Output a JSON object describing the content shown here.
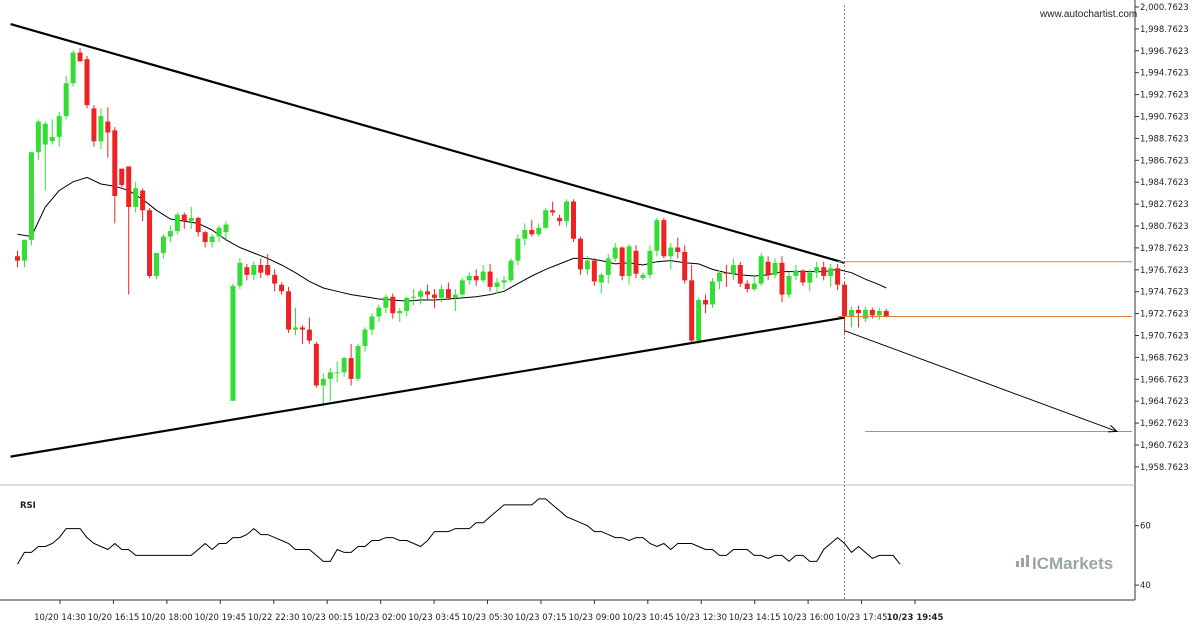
{
  "watermark": "www.autochartist.com",
  "brand": {
    "text": "ICMarkets"
  },
  "colors": {
    "up": "#33dd33",
    "down": "#ee2222",
    "ma": "#000000",
    "level": "#e0803f",
    "trend": "#000000",
    "vline": "#666666"
  },
  "chart_data": {
    "type": "candlestick",
    "title": "",
    "ylim": [
      1957.7623,
      2000.7623
    ],
    "y_ticks": [
      "2,000.7623",
      "1,998.7623",
      "1,996.7623",
      "1,994.7623",
      "1,992.7623",
      "1,990.7623",
      "1,988.7623",
      "1,986.7623",
      "1,984.7623",
      "1,982.7623",
      "1,980.7623",
      "1,978.7623",
      "1,976.7623",
      "1,974.7623",
      "1,972.7623",
      "1,970.7623",
      "1,968.7623",
      "1,966.7623",
      "1,964.7623",
      "1,962.7623",
      "1,960.7623",
      "1,958.7623"
    ],
    "x_ticks": [
      "10/20 14:30",
      "10/20 16:15",
      "10/20 18:00",
      "10/20 19:45",
      "10/22 22:30",
      "10/23 00:15",
      "10/23 02:00",
      "10/23 03:45",
      "10/23 05:30",
      "10/23 07:15",
      "10/23 09:00",
      "10/23 10:45",
      "10/23 12:30",
      "10/23 14:15",
      "10/23 16:00",
      "10/23 17:45",
      "10/23 19:45"
    ],
    "candles": [
      [
        1978.0,
        1978.5,
        1977.0,
        1977.6
      ],
      [
        1977.6,
        1979.5,
        1977.0,
        1979.5
      ],
      [
        1979.5,
        1987.5,
        1979.0,
        1987.5
      ],
      [
        1987.5,
        1990.5,
        1986.8,
        1990.3
      ],
      [
        1988.2,
        1990.3,
        1984.0,
        1990.1
      ],
      [
        1988.5,
        1990.5,
        1988.2,
        1988.9
      ],
      [
        1988.9,
        1991.2,
        1988.0,
        1990.8
      ],
      [
        1990.8,
        1994.5,
        1990.5,
        1993.8
      ],
      [
        1993.8,
        1996.8,
        1993.5,
        1996.6
      ],
      [
        1996.6,
        1997.0,
        1995.8,
        1995.8
      ],
      [
        1996.0,
        1996.3,
        1991.5,
        1991.8
      ],
      [
        1991.5,
        1991.8,
        1988.0,
        1988.5
      ],
      [
        1988.5,
        1991.5,
        1987.8,
        1990.8
      ],
      [
        1990.3,
        1991.6,
        1987.0,
        1989.3
      ],
      [
        1989.5,
        1989.8,
        1981.0,
        1983.5
      ],
      [
        1986.0,
        1986.0,
        1984.3,
        1984.5
      ],
      [
        1986.2,
        1986.2,
        1974.5,
        1982.5
      ],
      [
        1982.5,
        1984.8,
        1982.0,
        1984.2
      ],
      [
        1984.0,
        1984.2,
        1981.2,
        1982.2
      ],
      [
        1982.2,
        1982.4,
        1976.0,
        1976.2
      ],
      [
        1976.2,
        1978.3,
        1975.9,
        1978.3
      ],
      [
        1978.3,
        1980.0,
        1977.8,
        1979.8
      ],
      [
        1979.8,
        1980.8,
        1979.3,
        1980.3
      ],
      [
        1980.3,
        1982.0,
        1980.0,
        1981.8
      ],
      [
        1981.8,
        1982.0,
        1980.5,
        1981.2
      ],
      [
        1981.2,
        1982.5,
        1980.5,
        1981.5
      ],
      [
        1981.5,
        1981.6,
        1979.8,
        1980.2
      ],
      [
        1980.2,
        1980.3,
        1978.8,
        1979.3
      ],
      [
        1979.3,
        1980.0,
        1978.8,
        1979.8
      ],
      [
        1979.8,
        1980.8,
        1979.3,
        1980.6
      ],
      [
        1980.2,
        1981.2,
        1979.5,
        1980.9
      ],
      [
        1964.8,
        1975.5,
        1964.8,
        1975.3
      ],
      [
        1975.3,
        1977.8,
        1975.0,
        1977.4
      ],
      [
        1977.0,
        1977.3,
        1975.8,
        1976.3
      ],
      [
        1976.3,
        1977.5,
        1975.8,
        1977.2
      ],
      [
        1977.2,
        1977.8,
        1976.0,
        1976.5
      ],
      [
        1977.2,
        1978.2,
        1976.2,
        1976.3
      ],
      [
        1976.3,
        1976.8,
        1974.8,
        1975.5
      ],
      [
        1975.4,
        1975.6,
        1974.5,
        1974.8
      ],
      [
        1974.8,
        1975.2,
        1971.0,
        1971.3
      ],
      [
        1971.3,
        1973.3,
        1970.8,
        1971.5
      ],
      [
        1971.5,
        1971.7,
        1970.0,
        1971.3
      ],
      [
        1971.3,
        1972.4,
        1970.0,
        1970.3
      ],
      [
        1970.0,
        1970.2,
        1966.0,
        1966.2
      ],
      [
        1966.2,
        1967.3,
        1964.3,
        1966.8
      ],
      [
        1966.8,
        1967.8,
        1964.8,
        1967.4
      ],
      [
        1967.4,
        1968.4,
        1966.5,
        1967.4
      ],
      [
        1967.4,
        1968.8,
        1967.0,
        1968.7
      ],
      [
        1968.7,
        1970.0,
        1966.2,
        1966.8
      ],
      [
        1966.8,
        1970.0,
        1966.6,
        1969.8
      ],
      [
        1969.8,
        1971.5,
        1969.3,
        1971.3
      ],
      [
        1971.3,
        1972.8,
        1970.8,
        1972.5
      ],
      [
        1972.5,
        1973.6,
        1972.0,
        1973.3
      ],
      [
        1973.3,
        1974.5,
        1972.8,
        1974.3
      ],
      [
        1974.3,
        1974.6,
        1972.3,
        1972.8
      ],
      [
        1972.8,
        1973.3,
        1972.0,
        1973.0
      ],
      [
        1973.0,
        1974.3,
        1972.5,
        1974.2
      ],
      [
        1974.2,
        1975.0,
        1973.5,
        1974.3
      ],
      [
        1974.3,
        1975.0,
        1973.6,
        1974.8
      ],
      [
        1974.8,
        1975.4,
        1974.0,
        1974.5
      ],
      [
        1974.5,
        1975.0,
        1973.3,
        1974.2
      ],
      [
        1974.2,
        1975.4,
        1973.8,
        1975.0
      ],
      [
        1975.0,
        1975.6,
        1974.0,
        1974.2
      ],
      [
        1974.2,
        1975.0,
        1973.0,
        1974.5
      ],
      [
        1974.5,
        1976.0,
        1974.2,
        1975.8
      ],
      [
        1975.8,
        1976.5,
        1975.4,
        1976.2
      ],
      [
        1976.2,
        1976.8,
        1975.3,
        1975.8
      ],
      [
        1975.8,
        1977.2,
        1975.6,
        1976.6
      ],
      [
        1976.6,
        1977.3,
        1974.8,
        1975.2
      ],
      [
        1975.2,
        1976.0,
        1974.6,
        1975.6
      ],
      [
        1975.6,
        1976.2,
        1975.0,
        1975.8
      ],
      [
        1975.8,
        1977.8,
        1975.6,
        1977.6
      ],
      [
        1977.6,
        1980.0,
        1977.2,
        1979.6
      ],
      [
        1979.6,
        1981.0,
        1979.0,
        1980.4
      ],
      [
        1980.4,
        1981.3,
        1979.8,
        1980.0
      ],
      [
        1980.0,
        1981.0,
        1979.8,
        1980.6
      ],
      [
        1980.6,
        1982.4,
        1980.5,
        1982.2
      ],
      [
        1982.2,
        1983.0,
        1981.7,
        1982.0
      ],
      [
        1981.5,
        1981.8,
        1980.8,
        1981.2
      ],
      [
        1981.2,
        1983.2,
        1980.7,
        1983.0
      ],
      [
        1983.0,
        1983.2,
        1979.3,
        1979.6
      ],
      [
        1979.6,
        1979.8,
        1976.3,
        1976.8
      ],
      [
        1976.8,
        1978.0,
        1976.3,
        1977.6
      ],
      [
        1977.6,
        1977.8,
        1975.3,
        1975.7
      ],
      [
        1975.6,
        1976.5,
        1974.6,
        1976.3
      ],
      [
        1976.3,
        1978.2,
        1975.5,
        1977.8
      ],
      [
        1977.8,
        1979.2,
        1977.5,
        1978.8
      ],
      [
        1978.8,
        1978.9,
        1975.8,
        1976.2
      ],
      [
        1976.2,
        1979.1,
        1975.4,
        1978.9
      ],
      [
        1978.5,
        1979.0,
        1976.0,
        1976.4
      ],
      [
        1976.0,
        1976.5,
        1975.8,
        1976.3
      ],
      [
        1976.3,
        1979.0,
        1976.0,
        1978.5
      ],
      [
        1978.5,
        1981.5,
        1978.0,
        1981.3
      ],
      [
        1981.3,
        1981.5,
        1977.8,
        1978.0
      ],
      [
        1978.0,
        1979.2,
        1976.8,
        1978.8
      ],
      [
        1978.8,
        1979.7,
        1977.8,
        1978.4
      ],
      [
        1978.4,
        1979.0,
        1975.5,
        1975.8
      ],
      [
        1975.8,
        1977.2,
        1970.0,
        1970.3
      ],
      [
        1970.3,
        1974.2,
        1970.0,
        1974.0
      ],
      [
        1974.0,
        1974.5,
        1972.8,
        1973.6
      ],
      [
        1973.6,
        1976.0,
        1973.3,
        1975.7
      ],
      [
        1975.7,
        1976.7,
        1975.0,
        1976.5
      ],
      [
        1976.5,
        1977.2,
        1975.2,
        1976.4
      ],
      [
        1976.4,
        1977.8,
        1975.8,
        1977.2
      ],
      [
        1977.2,
        1977.5,
        1975.2,
        1975.5
      ],
      [
        1975.5,
        1975.8,
        1974.7,
        1975.0
      ],
      [
        1975.0,
        1976.3,
        1974.8,
        1975.5
      ],
      [
        1975.5,
        1978.3,
        1975.3,
        1978.0
      ],
      [
        1977.5,
        1978.0,
        1975.8,
        1976.3
      ],
      [
        1976.3,
        1977.8,
        1976.0,
        1977.4
      ],
      [
        1977.4,
        1978.0,
        1973.8,
        1974.5
      ],
      [
        1974.5,
        1976.5,
        1974.2,
        1976.2
      ],
      [
        1976.2,
        1977.2,
        1975.8,
        1976.7
      ],
      [
        1976.7,
        1976.8,
        1975.3,
        1975.6
      ],
      [
        1975.6,
        1976.8,
        1974.8,
        1976.5
      ],
      [
        1976.5,
        1977.5,
        1976.0,
        1977.0
      ],
      [
        1977.0,
        1977.5,
        1975.8,
        1976.2
      ],
      [
        1976.2,
        1977.3,
        1975.2,
        1976.9
      ],
      [
        1976.9,
        1977.3,
        1974.9,
        1975.4
      ],
      [
        1975.4,
        1975.6,
        1971.0,
        1972.5
      ],
      [
        1972.5,
        1973.4,
        1971.5,
        1973.1
      ],
      [
        1973.1,
        1973.5,
        1971.5,
        1972.8
      ],
      [
        1972.3,
        1973.4,
        1972.0,
        1973.1
      ],
      [
        1973.1,
        1973.3,
        1972.3,
        1972.6
      ],
      [
        1972.6,
        1973.3,
        1972.2,
        1973.0
      ],
      [
        1973.0,
        1973.2,
        1972.4,
        1972.5
      ]
    ],
    "projection_index": 119,
    "moving_average": [
      [
        0,
        1980.0
      ],
      [
        2,
        1979.8
      ],
      [
        4,
        1982.5
      ],
      [
        6,
        1984.0
      ],
      [
        8,
        1984.8
      ],
      [
        10,
        1985.2
      ],
      [
        12,
        1984.6
      ],
      [
        14,
        1984.4
      ],
      [
        16,
        1984.0
      ],
      [
        18,
        1983.2
      ],
      [
        20,
        1982.2
      ],
      [
        22,
        1981.4
      ],
      [
        24,
        1981.2
      ],
      [
        26,
        1981.0
      ],
      [
        28,
        1980.4
      ],
      [
        30,
        1979.5
      ],
      [
        32,
        1978.8
      ],
      [
        34,
        1978.3
      ],
      [
        36,
        1977.8
      ],
      [
        38,
        1977.2
      ],
      [
        40,
        1976.5
      ],
      [
        42,
        1975.7
      ],
      [
        44,
        1975.1
      ],
      [
        46,
        1974.8
      ],
      [
        48,
        1974.5
      ],
      [
        50,
        1974.3
      ],
      [
        52,
        1974.1
      ],
      [
        54,
        1974.0
      ],
      [
        56,
        1973.9
      ],
      [
        58,
        1974.0
      ],
      [
        60,
        1974.0
      ],
      [
        62,
        1974.1
      ],
      [
        64,
        1974.2
      ],
      [
        66,
        1974.3
      ],
      [
        68,
        1974.5
      ],
      [
        70,
        1974.8
      ],
      [
        72,
        1975.5
      ],
      [
        74,
        1976.2
      ],
      [
        76,
        1976.8
      ],
      [
        78,
        1977.3
      ],
      [
        80,
        1977.8
      ],
      [
        82,
        1977.8
      ],
      [
        84,
        1977.6
      ],
      [
        86,
        1977.3
      ],
      [
        88,
        1977.4
      ],
      [
        90,
        1977.2
      ],
      [
        92,
        1977.5
      ],
      [
        94,
        1977.6
      ],
      [
        96,
        1977.4
      ],
      [
        98,
        1977.3
      ],
      [
        100,
        1976.8
      ],
      [
        102,
        1976.5
      ],
      [
        104,
        1976.3
      ],
      [
        106,
        1976.2
      ],
      [
        108,
        1976.3
      ],
      [
        110,
        1976.6
      ],
      [
        112,
        1976.6
      ],
      [
        114,
        1976.6
      ],
      [
        116,
        1976.6
      ],
      [
        118,
        1976.8
      ],
      [
        120,
        1976.5
      ],
      [
        122,
        1975.9
      ],
      [
        124,
        1975.4
      ],
      [
        125,
        1975.1
      ]
    ],
    "trendlines": [
      {
        "from": [
          -1,
          1999.2
        ],
        "to": [
          119,
          1977.4
        ]
      },
      {
        "from": [
          -1,
          1959.7
        ],
        "to": [
          119,
          1972.4
        ]
      }
    ],
    "levels": [
      {
        "value": 1977.5,
        "from_index": 118
      },
      {
        "value": 1972.5,
        "from_index": 118
      },
      {
        "value": 1962.0,
        "from_index": 122
      }
    ],
    "arrow": {
      "from": [
        119,
        1971.2
      ],
      "to": [
        131,
        1962.0
      ]
    },
    "rsi": {
      "label": "RSI",
      "ticks": [
        "60",
        "40"
      ],
      "tick_values": [
        60,
        40
      ],
      "ylim": [
        35,
        72
      ],
      "values": [
        47,
        51,
        51,
        53,
        53,
        54,
        56,
        59,
        59,
        59,
        56,
        54,
        53,
        52,
        54,
        52,
        52,
        50,
        50,
        50,
        50,
        50,
        50,
        50,
        50,
        50,
        52,
        54,
        52,
        54,
        54,
        56,
        56,
        57,
        59,
        57,
        57,
        56,
        55,
        54,
        52,
        52,
        52,
        50,
        48,
        48,
        52,
        51,
        51,
        53,
        53,
        55,
        55,
        56,
        56,
        55,
        55,
        54,
        53,
        55,
        58,
        58,
        58,
        59,
        59,
        59,
        61,
        61,
        63,
        65,
        67,
        67,
        67,
        67,
        67,
        69,
        69,
        67,
        65,
        63,
        62,
        61,
        60,
        58,
        58,
        57,
        56,
        56,
        55,
        56,
        56,
        54,
        53,
        54,
        52,
        54,
        54,
        54,
        53,
        52,
        52,
        50,
        50,
        52,
        52,
        52,
        50,
        50,
        49,
        50,
        50,
        48,
        50,
        50,
        48,
        48,
        52,
        54,
        56,
        54,
        51,
        53,
        51,
        49,
        50,
        50,
        50,
        47
      ]
    }
  }
}
